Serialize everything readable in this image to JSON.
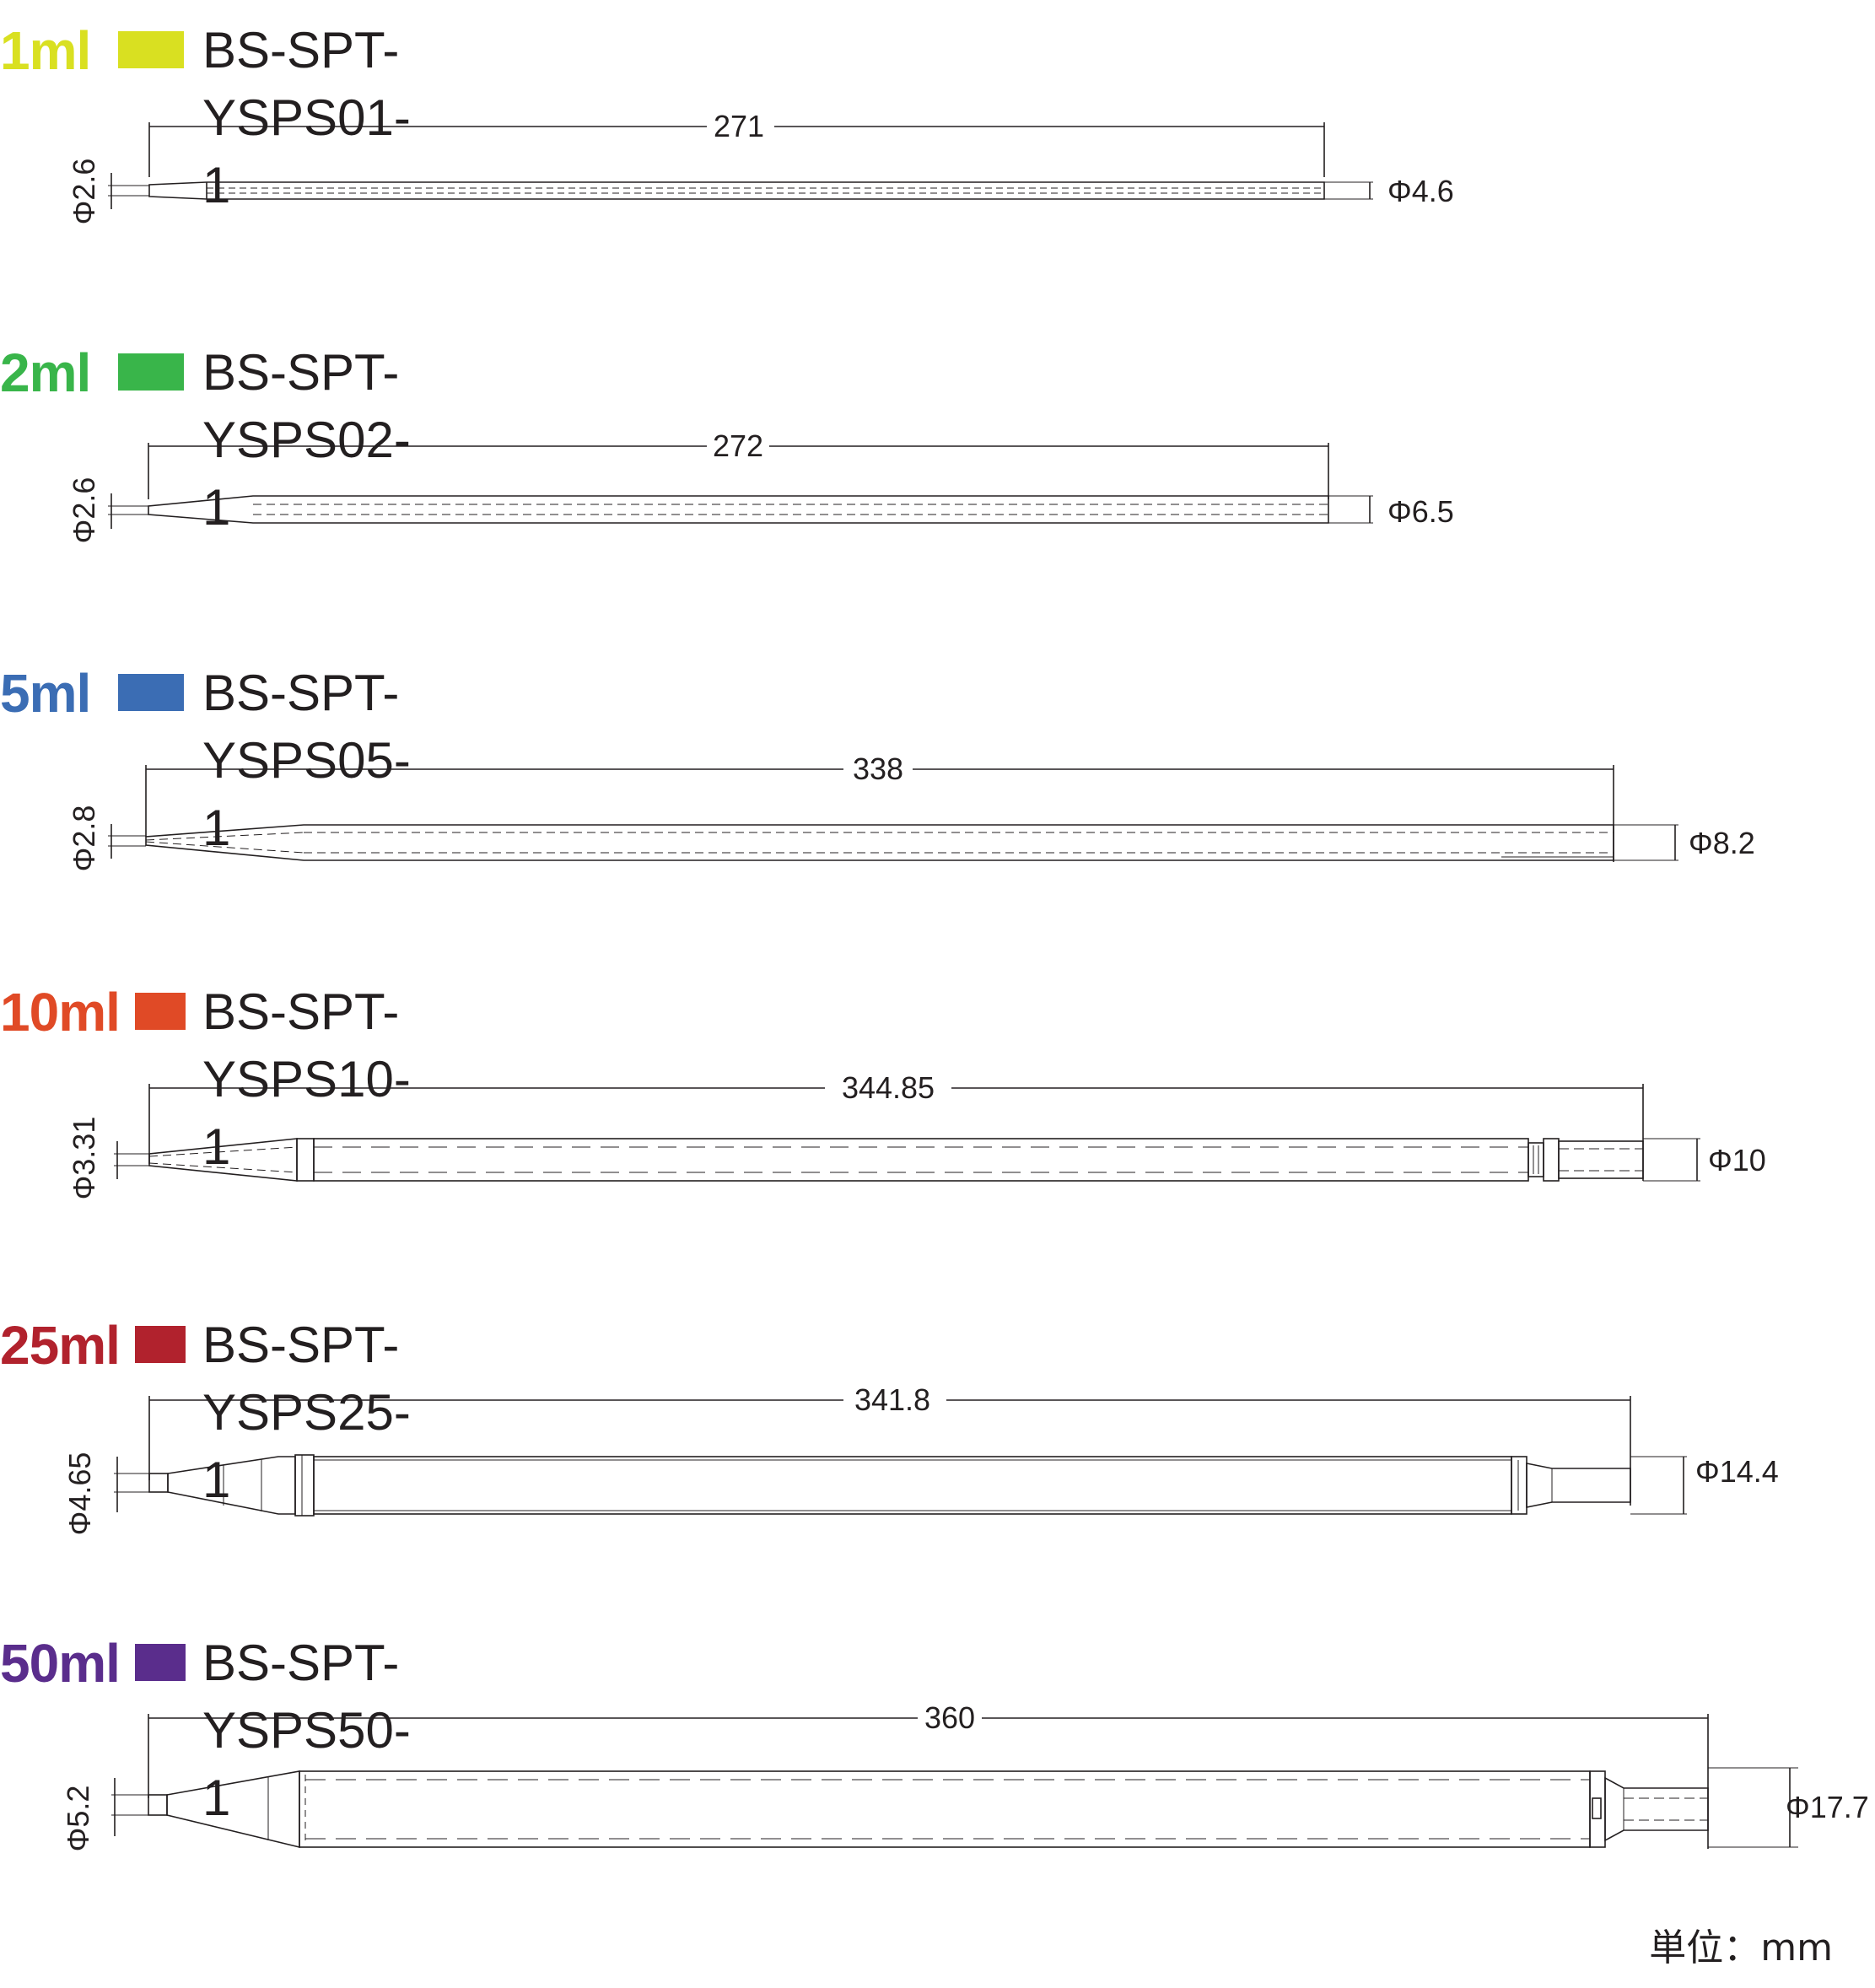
{
  "items": [
    {
      "volume": "1ml",
      "color": "#d9e021",
      "code": "BS-SPT-YSPS01-1",
      "length": "271",
      "tip_diameter": "Φ2.6",
      "body_diameter": "Φ4.6"
    },
    {
      "volume": "2ml",
      "color": "#39b54a",
      "code": "BS-SPT-YSPS02-1",
      "length": "272",
      "tip_diameter": "Φ2.6",
      "body_diameter": "Φ6.5"
    },
    {
      "volume": "5ml",
      "color": "#3b6db4",
      "code": "BS-SPT-YSPS05-1",
      "length": "338",
      "tip_diameter": "Φ2.8",
      "body_diameter": "Φ8.2"
    },
    {
      "volume": "10ml",
      "color": "#e04a26",
      "code": "BS-SPT-YSPS10-1",
      "length": "344.85",
      "tip_diameter": "Φ3.31",
      "body_diameter": "Φ10"
    },
    {
      "volume": "25ml",
      "color": "#b1222d",
      "code": "BS-SPT-YSPS25-1",
      "length": "341.8",
      "tip_diameter": "Φ4.65",
      "body_diameter": "Φ14.4"
    },
    {
      "volume": "50ml",
      "color": "#5a2d8c",
      "code": "BS-SPT-YSPS50-1",
      "length": "360",
      "tip_diameter": "Φ5.2",
      "body_diameter": "Φ17.7"
    }
  ],
  "unit_label": "単位：mm"
}
